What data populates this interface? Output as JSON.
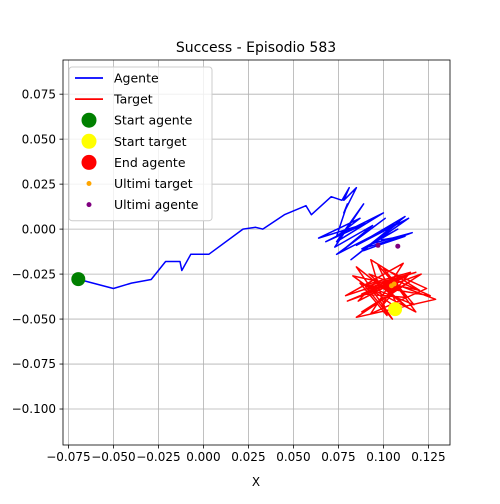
{
  "chart_data": {
    "type": "line",
    "title": "Success - Episodio 583",
    "xlabel": "X",
    "ylabel": "",
    "xlim": [
      -0.078,
      0.137
    ],
    "ylim": [
      -0.12,
      0.094
    ],
    "grid": true,
    "legend_position": "top-left",
    "x_ticks": [
      -0.075,
      -0.05,
      -0.025,
      0.0,
      0.025,
      0.05,
      0.075,
      0.1,
      0.125
    ],
    "x_tick_labels": [
      "−0.075",
      "−0.050",
      "−0.025",
      "0.000",
      "0.025",
      "0.050",
      "0.075",
      "0.100",
      "0.125"
    ],
    "y_ticks": [
      -0.1,
      -0.075,
      -0.05,
      -0.025,
      0.0,
      0.025,
      0.05,
      0.075
    ],
    "y_tick_labels": [
      "−0.100",
      "−0.075",
      "−0.050",
      "−0.025",
      "0.000",
      "0.025",
      "0.050",
      "0.075"
    ],
    "colors": {
      "agente": "#0000ff",
      "target": "#ff0000",
      "start_agente": "#008000",
      "start_target": "#ffff00",
      "end_agente": "#ff0000",
      "ultimi_target": "#ffa500",
      "ultimi_agente": "#800080"
    },
    "series": [
      {
        "name": "Agente",
        "type": "line",
        "color": "#0000ff",
        "x": [
          -0.069,
          -0.05,
          -0.04,
          -0.029,
          -0.021,
          -0.013,
          -0.012,
          -0.007,
          -0.002,
          0.003,
          0.022,
          0.029,
          0.033,
          0.045,
          0.057,
          0.06,
          0.071,
          0.077,
          0.081,
          0.078,
          0.085,
          0.078,
          0.08,
          0.074,
          0.087,
          0.064,
          0.09,
          0.068,
          0.1,
          0.074,
          0.089,
          0.073,
          0.094,
          0.077,
          0.101,
          0.074,
          0.109,
          0.082,
          0.112,
          0.085,
          0.114,
          0.087,
          0.106,
          0.089,
          0.116,
          0.094,
          0.108,
          0.088,
          0.111,
          0.099,
          0.112,
          0.097
        ],
        "y": [
          -0.028,
          -0.033,
          -0.03,
          -0.028,
          -0.018,
          -0.018,
          -0.023,
          -0.014,
          -0.014,
          -0.014,
          0.0,
          0.001,
          0.0,
          0.008,
          0.013,
          0.008,
          0.018,
          0.016,
          0.023,
          0.016,
          0.023,
          0.009,
          0.014,
          -0.004,
          0.006,
          -0.005,
          0.003,
          -0.007,
          0.009,
          -0.007,
          0.014,
          -0.01,
          0.002,
          -0.012,
          0.006,
          -0.014,
          0.004,
          -0.017,
          0.007,
          -0.009,
          0.006,
          -0.013,
          0.002,
          -0.012,
          -0.002,
          -0.008,
          0.0,
          -0.011,
          -0.004,
          -0.006,
          -0.004,
          -0.009
        ]
      },
      {
        "name": "Target",
        "type": "line",
        "color": "#ff0000",
        "x": [
          0.097,
          0.086,
          0.113,
          0.08,
          0.121,
          0.088,
          0.115,
          0.085,
          0.129,
          0.092,
          0.114,
          0.085,
          0.105,
          0.09,
          0.118,
          0.079,
          0.111,
          0.093,
          0.124,
          0.1,
          0.117,
          0.087,
          0.102,
          0.093,
          0.12,
          0.083,
          0.109,
          0.097,
          0.113,
          0.088,
          0.107,
          0.099,
          0.115,
          0.09,
          0.126,
          0.104,
          0.118,
          0.093,
          0.108
        ],
        "y": [
          -0.028,
          -0.04,
          -0.026,
          -0.04,
          -0.025,
          -0.046,
          -0.029,
          -0.049,
          -0.039,
          -0.025,
          -0.044,
          -0.021,
          -0.05,
          -0.032,
          -0.024,
          -0.037,
          -0.019,
          -0.047,
          -0.033,
          -0.022,
          -0.042,
          -0.03,
          -0.048,
          -0.017,
          -0.034,
          -0.026,
          -0.045,
          -0.02,
          -0.038,
          -0.036,
          -0.028,
          -0.043,
          -0.024,
          -0.031,
          -0.037,
          -0.027,
          -0.046,
          -0.033,
          -0.03
        ]
      }
    ],
    "markers": [
      {
        "name": "Start agente",
        "color": "#008000",
        "size": 7,
        "x": -0.0695,
        "y": -0.0278
      },
      {
        "name": "Start target",
        "color": "#ffff00",
        "size": 7,
        "x": 0.1065,
        "y": -0.0445
      },
      {
        "name": "End agente",
        "color": "#ff0000",
        "size": 7,
        "x": 0.1045,
        "y": -0.0315
      },
      {
        "name": "Ultimi target",
        "color": "#ffa500",
        "size": 2.5,
        "points": [
          [
            0.1045,
            -0.0315
          ],
          [
            0.106,
            -0.0305
          ]
        ]
      },
      {
        "name": "Ultimi agente",
        "color": "#800080",
        "size": 2.5,
        "points": [
          [
            0.097,
            -0.009
          ],
          [
            0.108,
            -0.0095
          ]
        ]
      }
    ],
    "legend": [
      {
        "label": "Agente",
        "kind": "line",
        "color": "#0000ff"
      },
      {
        "label": "Target",
        "kind": "line",
        "color": "#ff0000"
      },
      {
        "label": "Start agente",
        "kind": "dot",
        "color": "#008000",
        "size": 7.5
      },
      {
        "label": "Start target",
        "kind": "dot",
        "color": "#ffff00",
        "size": 7.5
      },
      {
        "label": "End agente",
        "kind": "dot",
        "color": "#ff0000",
        "size": 7.5
      },
      {
        "label": "Ultimi target",
        "kind": "dot",
        "color": "#ffa500",
        "size": 2.5
      },
      {
        "label": "Ultimi agente",
        "kind": "dot",
        "color": "#800080",
        "size": 2.5
      }
    ]
  }
}
